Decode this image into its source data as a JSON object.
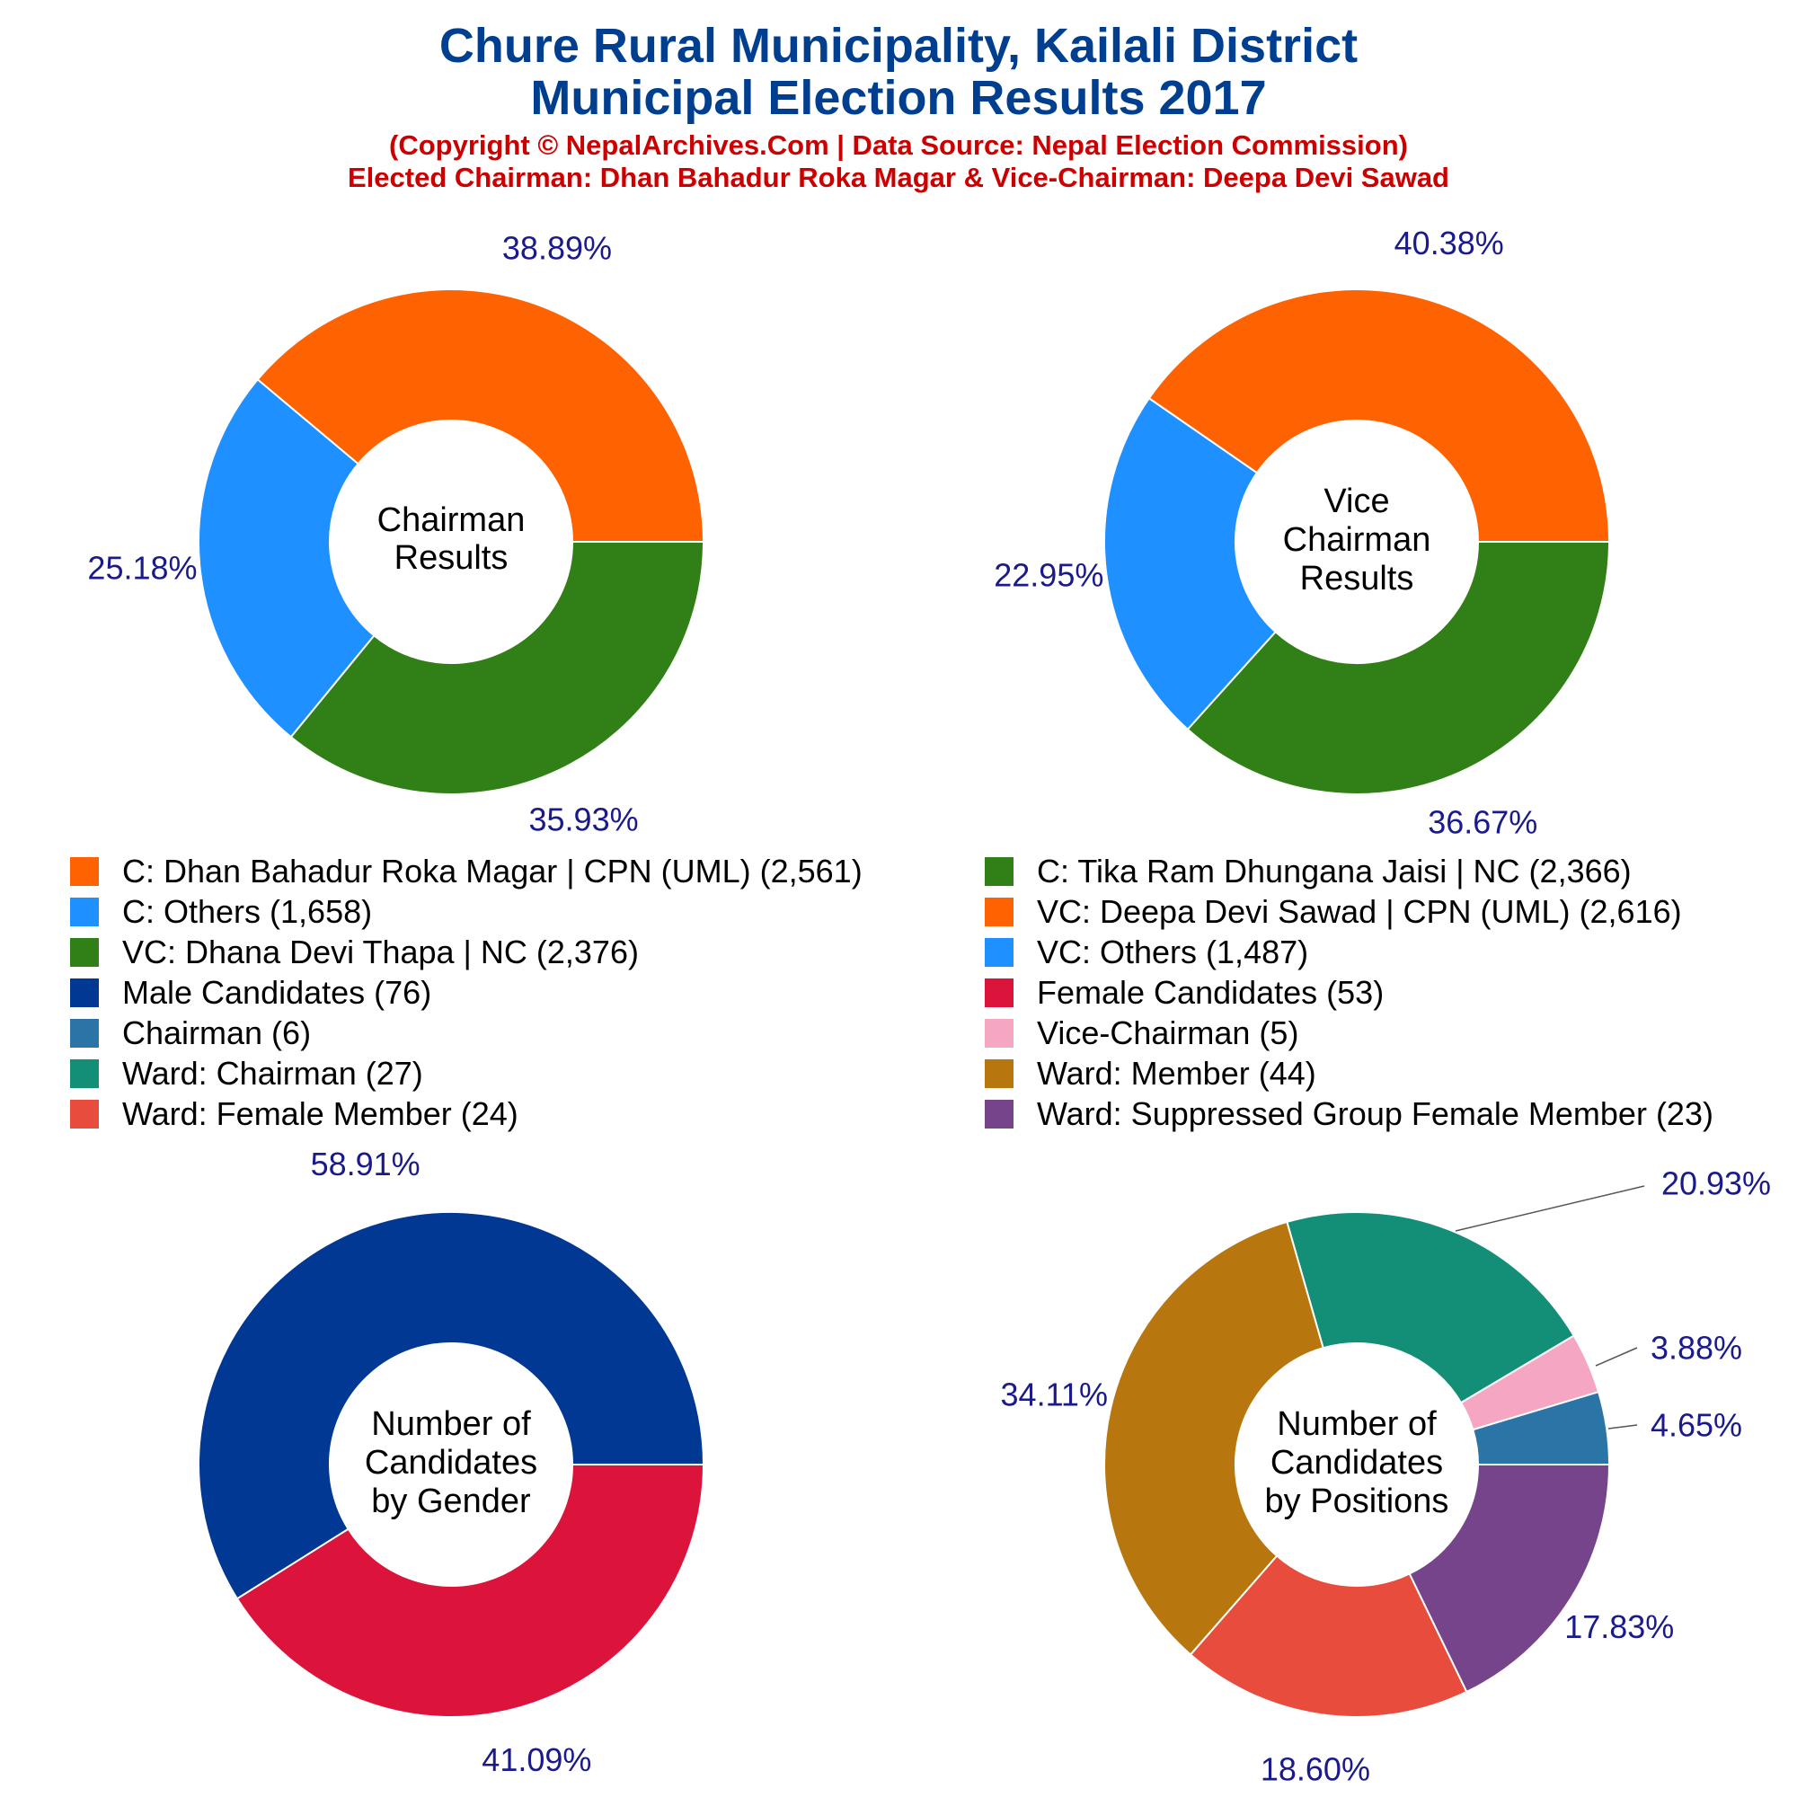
{
  "header": {
    "title_line1": "Chure Rural Municipality, Kailali District",
    "title_line2": "Municipal Election Results 2017",
    "subtitle_line1": "(Copyright © NepalArchives.Com | Data Source: Nepal Election Commission)",
    "subtitle_line2": "Elected Chairman: Dhan Bahadur Roka Magar & Vice-Chairman: Deepa Devi Sawad"
  },
  "colors": {
    "title": "#003f8f",
    "subtitle": "#cc0000",
    "percent_label": "#1a1a8c"
  },
  "legend": [
    {
      "label": "C: Dhan Bahadur Roka Magar | CPN (UML) (2,561)",
      "color": "#ff6200"
    },
    {
      "label": "C: Tika Ram Dhungana Jaisi | NC (2,366)",
      "color": "#317f17"
    },
    {
      "label": "C: Others (1,658)",
      "color": "#1e90ff"
    },
    {
      "label": "VC: Deepa Devi Sawad | CPN (UML) (2,616)",
      "color": "#ff6200"
    },
    {
      "label": "VC: Dhana Devi Thapa | NC (2,376)",
      "color": "#317f17"
    },
    {
      "label": "VC: Others (1,487)",
      "color": "#1e90ff"
    },
    {
      "label": "Male Candidates (76)",
      "color": "#003893"
    },
    {
      "label": "Female Candidates (53)",
      "color": "#dc143c"
    },
    {
      "label": "Chairman (6)",
      "color": "#2a75a6"
    },
    {
      "label": "Vice-Chairman (5)",
      "color": "#f4a6c2"
    },
    {
      "label": "Ward: Chairman (27)",
      "color": "#128f76"
    },
    {
      "label": "Ward: Member (44)",
      "color": "#b8770e"
    },
    {
      "label": "Ward: Female Member (24)",
      "color": "#e74c3c"
    },
    {
      "label": "Ward: Suppressed Group Female Member (23)",
      "color": "#76448a"
    }
  ],
  "chart_data": [
    {
      "type": "pie",
      "center_label": [
        "Chairman",
        "Results"
      ],
      "categories": [
        "C: Dhan Bahadur Roka Magar | CPN (UML)",
        "C: Others",
        "C: Tika Ram Dhungana Jaisi | NC"
      ],
      "values": [
        2561,
        1658,
        2366
      ],
      "percent_labels": [
        "38.89%",
        "25.18%",
        "35.93%"
      ],
      "colors": [
        "#ff6200",
        "#1e90ff",
        "#317f17"
      ]
    },
    {
      "type": "pie",
      "center_label": [
        "Vice",
        "Chairman",
        "Results"
      ],
      "categories": [
        "VC: Deepa Devi Sawad | CPN (UML)",
        "VC: Others",
        "VC: Dhana Devi Thapa | NC"
      ],
      "values": [
        2616,
        1487,
        2376
      ],
      "percent_labels": [
        "40.38%",
        "22.95%",
        "36.67%"
      ],
      "colors": [
        "#ff6200",
        "#1e90ff",
        "#317f17"
      ]
    },
    {
      "type": "pie",
      "center_label": [
        "Number of",
        "Candidates",
        "by Gender"
      ],
      "categories": [
        "Male Candidates",
        "Female Candidates"
      ],
      "values": [
        76,
        53
      ],
      "percent_labels": [
        "58.91%",
        "41.09%"
      ],
      "colors": [
        "#003893",
        "#dc143c"
      ]
    },
    {
      "type": "pie",
      "center_label": [
        "Number of",
        "Candidates",
        "by Positions"
      ],
      "categories": [
        "Chairman",
        "Vice-Chairman",
        "Ward: Chairman",
        "Ward: Member",
        "Ward: Female Member",
        "Ward: Suppressed Group Female Member"
      ],
      "values": [
        6,
        5,
        27,
        44,
        24,
        23
      ],
      "percent_labels": [
        "4.65%",
        "3.88%",
        "20.93%",
        "34.11%",
        "18.60%",
        "17.83%"
      ],
      "colors": [
        "#2a75a6",
        "#f4a6c2",
        "#128f76",
        "#b8770e",
        "#e74c3c",
        "#76448a"
      ]
    }
  ]
}
